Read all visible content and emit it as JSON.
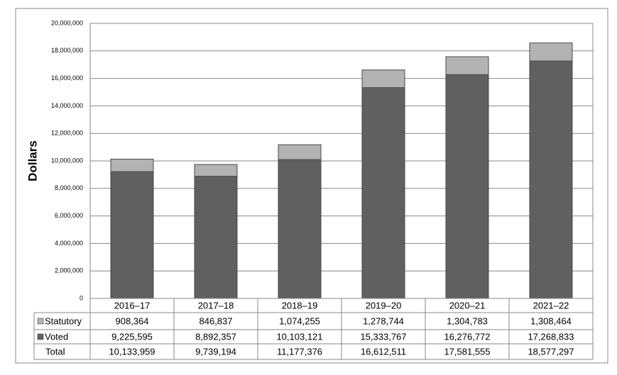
{
  "chart_data": {
    "type": "stacked-bar",
    "y_label": "Dollars",
    "categories": [
      "2016–17",
      "2017–18",
      "2018–19",
      "2019–20",
      "2020–21",
      "2021–22"
    ],
    "series": [
      {
        "name": "Statutory",
        "color": "#b3b3b3",
        "values": [
          908364,
          846837,
          1074255,
          1278744,
          1304783,
          1308464
        ],
        "value_labels": [
          "908,364",
          "846,837",
          "1,074,255",
          "1,278,744",
          "1,304,783",
          "1,308,464"
        ]
      },
      {
        "name": "Voted",
        "color": "#606060",
        "values": [
          9225595,
          8892357,
          10103121,
          15333767,
          16276772,
          17268833
        ],
        "value_labels": [
          "9,225,595",
          "8,892,357",
          "10,103,121",
          "15,333,767",
          "16,276,772",
          "17,268,833"
        ]
      }
    ],
    "total": {
      "name": "Total",
      "values": [
        10133959,
        9739194,
        11177376,
        16612511,
        17581555,
        18577297
      ],
      "value_labels": [
        "10,133,959",
        "9,739,194",
        "11,177,376",
        "16,612,511",
        "17,581,555",
        "18,577,297"
      ]
    },
    "ylim": [
      0,
      20000000
    ],
    "yticks": [
      0,
      {
        "value": 2000000,
        "label": "2,000,000"
      },
      {
        "value": 4000000,
        "label": "4,000,000"
      },
      {
        "value": 6000000,
        "label": "6,000,000"
      },
      {
        "value": 8000000,
        "label": "8,000,000"
      },
      {
        "value": 10000000,
        "label": "10,000,000"
      },
      {
        "value": 12000000,
        "label": "12,000,000"
      },
      {
        "value": 14000000,
        "label": "14,000,000"
      },
      {
        "value": 16000000,
        "label": "16,000,000"
      },
      {
        "value": 18000000,
        "label": "18,000,000"
      },
      {
        "value": 20000000,
        "label": "20,000,000"
      }
    ],
    "grid": true
  }
}
